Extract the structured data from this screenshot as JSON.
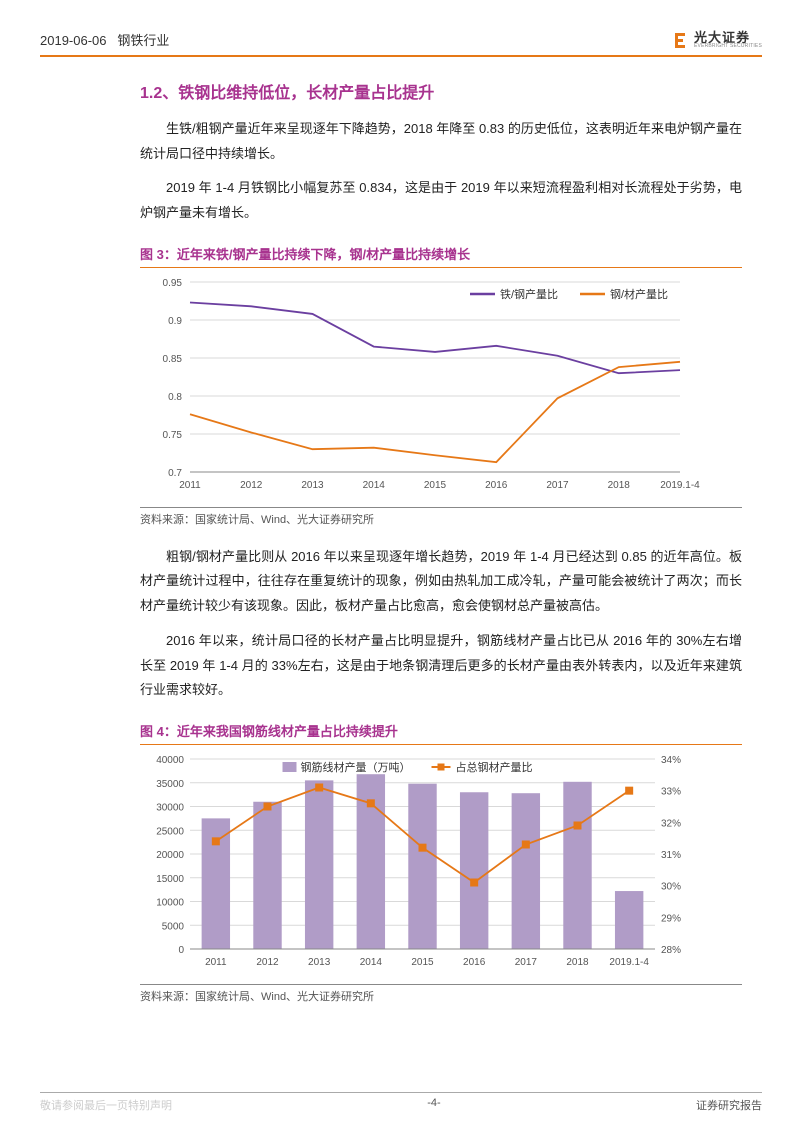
{
  "header": {
    "date": "2019-06-06",
    "industry": "钢铁行业",
    "logo_cn": "光大证券",
    "logo_en": "EVERBRIGHT SECURITIES"
  },
  "section": {
    "number": "1.2、",
    "title": "铁钢比维持低位，长材产量占比提升"
  },
  "paragraphs": {
    "p1": "生铁/粗钢产量近年来呈现逐年下降趋势，2018 年降至 0.83 的历史低位，这表明近年来电炉钢产量在统计局口径中持续增长。",
    "p2": "2019 年 1-4 月铁钢比小幅复苏至 0.834，这是由于 2019 年以来短流程盈利相对长流程处于劣势，电炉钢产量未有增长。",
    "p3": "粗钢/钢材产量比则从 2016 年以来呈现逐年增长趋势，2019 年 1-4 月已经达到 0.85 的近年高位。板材产量统计过程中，往往存在重复统计的现象，例如由热轧加工成冷轧，产量可能会被统计了两次；而长材产量统计较少有该现象。因此，板材产量占比愈高，愈会使钢材总产量被高估。",
    "p4": "2016 年以来，统计局口径的长材产量占比明显提升，钢筋线材产量占比已从 2016 年的 30%左右增长至 2019 年 1-4 月的 33%左右，这是由于地条钢清理后更多的长材产量由表外转表内，以及近年来建筑行业需求较好。"
  },
  "fig3": {
    "title": "图 3：近年来铁/钢产量比持续下降，钢/材产量比持续增长",
    "source": "资料来源：国家统计局、Wind、光大证券研究所",
    "type": "line",
    "legend": [
      "铁/钢产量比",
      "钢/材产量比"
    ],
    "categories": [
      "2011",
      "2012",
      "2013",
      "2014",
      "2015",
      "2016",
      "2017",
      "2018",
      "2019.1-4"
    ],
    "series1": [
      0.923,
      0.918,
      0.908,
      0.865,
      0.858,
      0.866,
      0.853,
      0.83,
      0.834
    ],
    "series2": [
      0.776,
      0.752,
      0.73,
      0.732,
      0.722,
      0.713,
      0.797,
      0.838,
      0.845
    ],
    "ylim": [
      0.7,
      0.95
    ],
    "ytick_step": 0.05,
    "colors": {
      "series1": "#6b3fa0",
      "series2": "#e67817"
    },
    "background_color": "#ffffff",
    "grid_color": "#d9d9d9",
    "line_width": 1.8,
    "label_fontsize": 10
  },
  "fig4": {
    "title": "图 4：近年来我国钢筋线材产量占比持续提升",
    "source": "资料来源：国家统计局、Wind、光大证券研究所",
    "type": "bar-line",
    "legend": [
      "钢筋线材产量（万吨）",
      "占总钢材产量比"
    ],
    "categories": [
      "2011",
      "2012",
      "2013",
      "2014",
      "2015",
      "2016",
      "2017",
      "2018",
      "2019.1-4"
    ],
    "bars": [
      27500,
      31000,
      35500,
      36800,
      34800,
      33000,
      32800,
      35200,
      12200
    ],
    "line": [
      31.4,
      32.5,
      33.1,
      32.6,
      31.2,
      30.1,
      31.3,
      31.9,
      33.0
    ],
    "y1_lim": [
      0,
      40000
    ],
    "y1_tick_step": 5000,
    "y2_lim": [
      28,
      34
    ],
    "y2_tick_step": 1,
    "colors": {
      "bar": "#b09cc7",
      "line": "#e67817",
      "marker_fill": "#e67817"
    },
    "background_color": "#ffffff",
    "grid_color": "#d9d9d9",
    "bar_width": 0.55,
    "line_width": 1.8,
    "marker": "square",
    "label_fontsize": 10
  },
  "footer": {
    "left_faded": "敬请参阅最后一页特别声明",
    "center": "-4-",
    "right": "证券研究报告"
  }
}
